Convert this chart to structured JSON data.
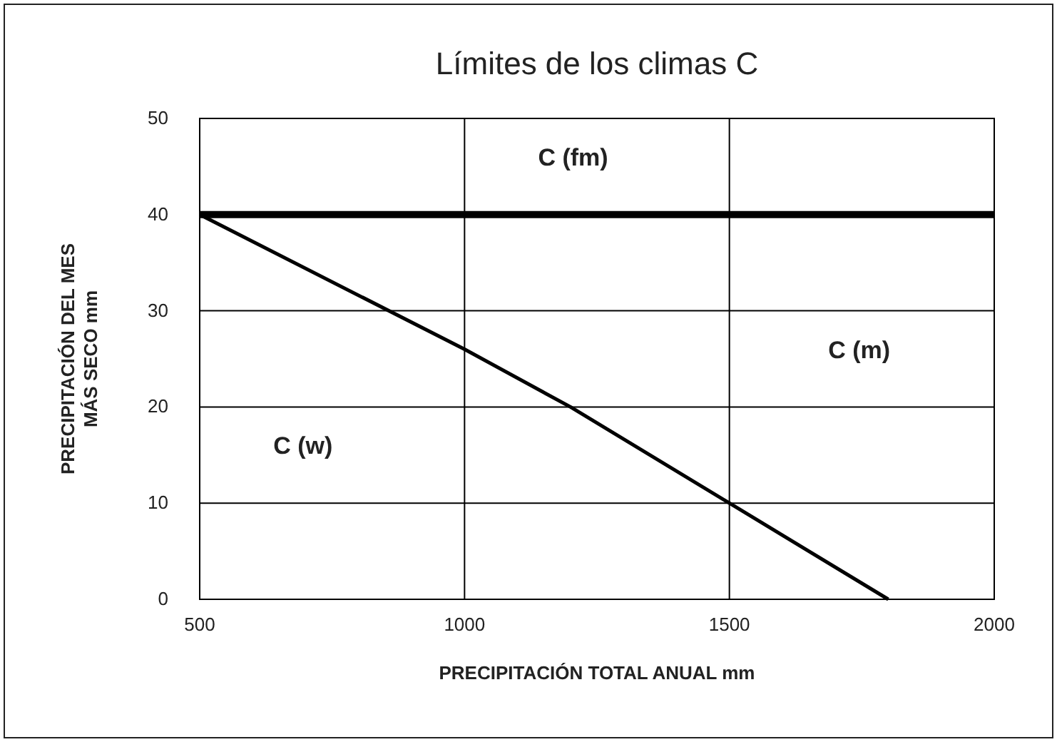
{
  "chart_data": {
    "type": "line",
    "title": "Límites de los climas C",
    "xlabel": "PRECIPITACIÓN TOTAL ANUAL mm",
    "ylabel": "PRECIPITACIÓN DEL MES\nMÁS SECO mm",
    "x": [
      500,
      1000,
      1200,
      1500,
      1800
    ],
    "series": [
      {
        "color": "#000000",
        "values": [
          40,
          26,
          20,
          10,
          0
        ]
      }
    ],
    "xlim": [
      500,
      2000
    ],
    "xticks": [
      500,
      1000,
      1500,
      2000
    ],
    "ylim": [
      0,
      50
    ],
    "yticks": [
      0,
      10,
      20,
      30,
      40,
      50
    ],
    "grid": true,
    "marker": "none",
    "line_style": "solid",
    "ref_lines": [
      {
        "axis": "y",
        "value": 40,
        "label": null,
        "color": "#000000"
      }
    ],
    "annotations": [
      "C (fm)",
      "C (m)",
      "C (w)"
    ]
  }
}
